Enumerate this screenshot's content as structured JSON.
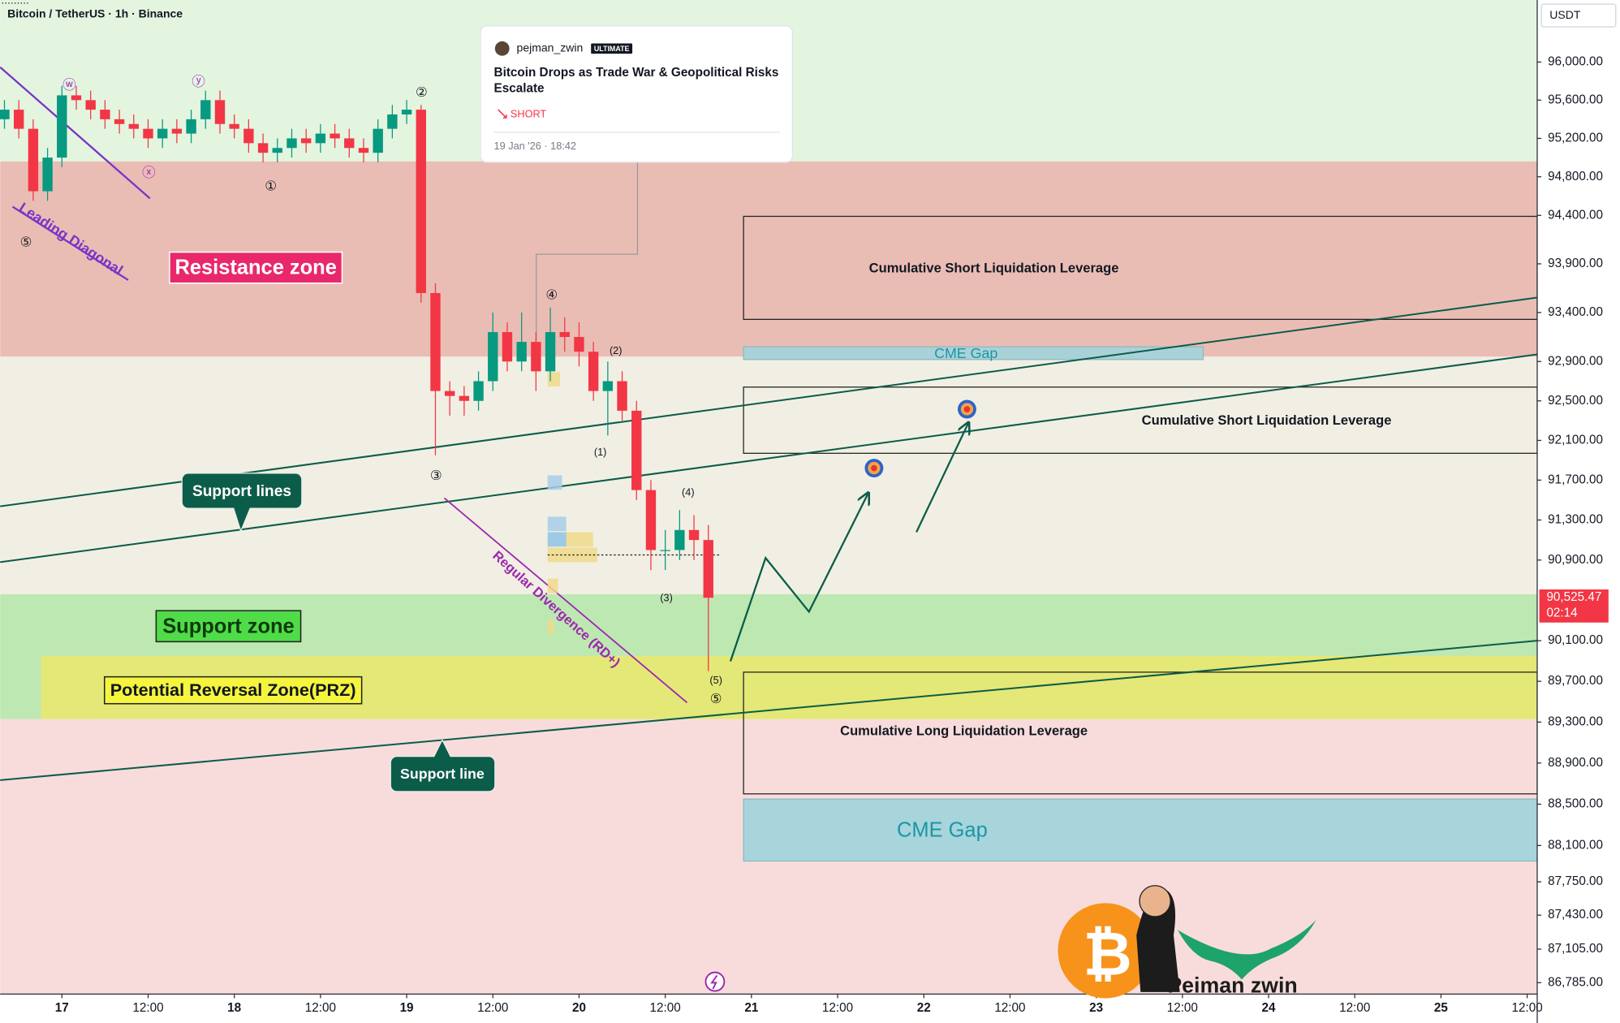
{
  "chart_data": {
    "type": "candlestick",
    "title": "Bitcoin / TetherUS · 1h · Binance",
    "y_unit": "USDT",
    "log_scale": true,
    "up_color": "#089981",
    "down_color": "#f23645",
    "x": [
      -8,
      -6,
      -4,
      -2,
      0,
      2,
      4,
      6,
      8,
      10,
      12,
      14,
      16,
      18,
      20,
      22,
      24,
      26,
      28,
      30,
      32,
      34,
      36,
      38,
      40,
      42,
      44,
      46,
      48,
      50,
      52,
      54,
      56,
      58,
      60,
      62,
      64,
      66,
      68,
      70,
      72,
      74,
      76,
      78,
      80,
      82,
      84,
      86,
      88,
      90
    ],
    "open": [
      95400,
      95500,
      95300,
      94650,
      95000,
      95650,
      95600,
      95500,
      95400,
      95350,
      95300,
      95200,
      95300,
      95250,
      95400,
      95600,
      95350,
      95300,
      95150,
      95050,
      95100,
      95200,
      95150,
      95250,
      95200,
      95100,
      95050,
      95300,
      95450,
      95500,
      93600,
      92600,
      92550,
      92500,
      92700,
      93200,
      92900,
      93100,
      92800,
      93200,
      93150,
      93000,
      92600,
      92700,
      92400,
      91600,
      91000,
      91000,
      91200,
      91100
    ],
    "high": [
      95600,
      95600,
      95400,
      95100,
      95750,
      95750,
      95700,
      95600,
      95500,
      95450,
      95400,
      95400,
      95400,
      95500,
      95700,
      95700,
      95450,
      95400,
      95250,
      95200,
      95300,
      95300,
      95350,
      95350,
      95300,
      95200,
      95400,
      95550,
      95600,
      95550,
      93700,
      92700,
      92650,
      92800,
      93400,
      93300,
      93400,
      93200,
      93450,
      93350,
      93300,
      93100,
      92900,
      92800,
      92500,
      91700,
      91200,
      91400,
      91350,
      91250
    ],
    "low": [
      95300,
      95200,
      94550,
      94550,
      94900,
      95500,
      95400,
      95300,
      95250,
      95200,
      95100,
      95100,
      95150,
      95150,
      95300,
      95250,
      95200,
      95050,
      94950,
      94950,
      95000,
      95050,
      95050,
      95100,
      95000,
      94950,
      94950,
      95200,
      95350,
      93500,
      91950,
      92350,
      92350,
      92400,
      92600,
      92800,
      92800,
      92600,
      92700,
      93000,
      92850,
      92500,
      92150,
      92300,
      91500,
      90800,
      90800,
      90900,
      90900,
      89800
    ],
    "close": [
      95500,
      95300,
      94650,
      95000,
      95650,
      95600,
      95500,
      95400,
      95350,
      95300,
      95200,
      95300,
      95250,
      95400,
      95600,
      95350,
      95300,
      95150,
      95050,
      95100,
      95200,
      95150,
      95250,
      95200,
      95100,
      95050,
      95300,
      95450,
      95500,
      93600,
      92600,
      92550,
      92500,
      92700,
      93200,
      92900,
      93100,
      92800,
      93200,
      93150,
      93000,
      92600,
      92700,
      92400,
      91600,
      91000,
      91000,
      91200,
      91100,
      90525
    ],
    "xlim": [
      -8.6,
      205.4
    ],
    "ylim": [
      86677,
      96655
    ],
    "xticks": [
      {
        "value": 0,
        "label": "17"
      },
      {
        "value": 12,
        "label": "12:00"
      },
      {
        "value": 24,
        "label": "18"
      },
      {
        "value": 36,
        "label": "12:00"
      },
      {
        "value": 48,
        "label": "19"
      },
      {
        "value": 60,
        "label": "12:00"
      },
      {
        "value": 72,
        "label": "20"
      },
      {
        "value": 84,
        "label": "12:00"
      },
      {
        "value": 96,
        "label": "21"
      },
      {
        "value": 108,
        "label": "12:00"
      },
      {
        "value": 120,
        "label": "22"
      },
      {
        "value": 132,
        "label": "12:00"
      },
      {
        "value": 144,
        "label": "23"
      },
      {
        "value": 156,
        "label": "12:00"
      },
      {
        "value": 168,
        "label": "24"
      },
      {
        "value": 180,
        "label": "12:00"
      },
      {
        "value": 192,
        "label": "25"
      },
      {
        "value": 204,
        "label": "12:00"
      }
    ],
    "yticks": [
      {
        "value": 96000,
        "label": "96,000.00"
      },
      {
        "value": 95600,
        "label": "95,600.00"
      },
      {
        "value": 95200,
        "label": "95,200.00"
      },
      {
        "value": 94800,
        "label": "94,800.00"
      },
      {
        "value": 94400,
        "label": "94,400.00"
      },
      {
        "value": 93900,
        "label": "93,900.00"
      },
      {
        "value": 93400,
        "label": "93,400.00"
      },
      {
        "value": 92900,
        "label": "92,900.00"
      },
      {
        "value": 92500,
        "label": "92,500.00"
      },
      {
        "value": 92100,
        "label": "92,100.00"
      },
      {
        "value": 91700,
        "label": "91,700.00"
      },
      {
        "value": 91300,
        "label": "91,300.00"
      },
      {
        "value": 90900,
        "label": "90,900.00"
      },
      {
        "value": 90100,
        "label": "90,100.00"
      },
      {
        "value": 89700,
        "label": "89,700.00"
      },
      {
        "value": 89300,
        "label": "89,300.00"
      },
      {
        "value": 88900,
        "label": "88,900.00"
      },
      {
        "value": 88500,
        "label": "88,500.00"
      },
      {
        "value": 88100,
        "label": "88,100.00"
      },
      {
        "value": 87750,
        "label": "87,750.00"
      },
      {
        "value": 87430,
        "label": "87,430.00"
      },
      {
        "value": 87105,
        "label": "87,105.00"
      },
      {
        "value": 86785,
        "label": "86,785.00"
      }
    ],
    "last_price": {
      "value": 90525.47,
      "label": "90,525.47"
    },
    "countdown": "02:14",
    "zones": [
      {
        "label": "Resistance zone",
        "low": 92950,
        "high": 94960,
        "color": "#eabdb4"
      },
      {
        "label": "Support zone",
        "low": 89330,
        "high": 90560,
        "color": "#bde8b2"
      },
      {
        "label": "Potential Reversal Zone(PRZ)",
        "low": 89330,
        "high": 89950,
        "from_x": -2.9,
        "color": "#e4e876"
      }
    ],
    "boxes": [
      {
        "label": "Cumulative Short Liquidation Leverage",
        "from_x": 94.9,
        "to_x": 205.4,
        "low": 93330,
        "high": 94390
      },
      {
        "label": "CME Gap",
        "from_x": 94.9,
        "to_x": 158.9,
        "low": 92920,
        "high": 93050,
        "color": "#a9d2d8"
      },
      {
        "label": "Cumulative Short Liquidation Leverage",
        "from_x": 94.9,
        "to_x": 205.4,
        "low": 91970,
        "high": 92640
      },
      {
        "label": "Cumulative Long Liquidation Leverage",
        "from_x": 94.9,
        "to_x": 205.4,
        "low": 88600,
        "high": 89790
      },
      {
        "label": "CME Gap",
        "from_x": 94.9,
        "to_x": 205.4,
        "low": 87950,
        "high": 88550,
        "color": "#a8d4db"
      }
    ],
    "annotations": [
      "Support lines",
      "Support line",
      "Leading Diagonal",
      "Regular Divergence (RD+)"
    ],
    "wave_labels": [
      "ⓦ",
      "ⓧ",
      "ⓨ",
      "①",
      "②",
      "③",
      "④",
      "⑤",
      "⑤",
      "(1)",
      "(2)",
      "(3)",
      "(4)",
      "(5)"
    ]
  },
  "news_card": {
    "author": "pejman_zwin",
    "badge": "ULTIMATE",
    "headline": "Bitcoin Drops as Trade War & Geopolitical Risks Escalate",
    "direction": "SHORT",
    "date": "19 Jan '26 · 18:42"
  },
  "logo": {
    "symbol": "₿",
    "name": "Peiman  zwin"
  }
}
